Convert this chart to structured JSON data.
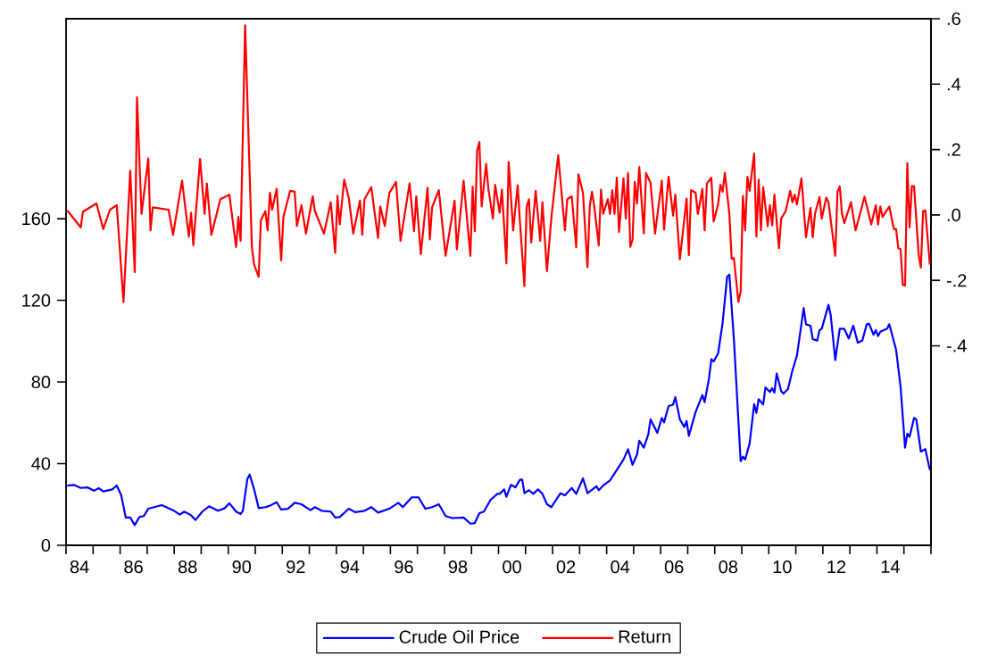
{
  "chart_data": {
    "type": "line",
    "xlim": [
      "1984",
      "2016"
    ],
    "xticks": [
      {
        "value": "1984",
        "label": null
      },
      {
        "value": "1985",
        "label": null
      },
      {
        "value": "1986",
        "label": null
      },
      {
        "value": "1987",
        "label": null
      },
      {
        "value": "1988",
        "label": null
      },
      {
        "value": "1989",
        "label": null
      },
      {
        "value": "1990",
        "label": null
      },
      {
        "value": "1991",
        "label": null
      },
      {
        "value": "1992",
        "label": null
      },
      {
        "value": "1993",
        "label": null
      },
      {
        "value": "1994",
        "label": null
      },
      {
        "value": "1995",
        "label": null
      },
      {
        "value": "1996",
        "label": null
      },
      {
        "value": "1997",
        "label": null
      },
      {
        "value": "1998",
        "label": null
      },
      {
        "value": "1999",
        "label": null
      },
      {
        "value": "2000",
        "label": null
      },
      {
        "value": "2001",
        "label": null
      },
      {
        "value": "2002",
        "label": null
      },
      {
        "value": "2003",
        "label": null
      },
      {
        "value": "2004",
        "label": null
      },
      {
        "value": "2005",
        "label": null
      },
      {
        "value": "2006",
        "label": null
      },
      {
        "value": "2007",
        "label": null
      },
      {
        "value": "2008",
        "label": null
      },
      {
        "value": "2009",
        "label": null
      },
      {
        "value": "2010",
        "label": null
      },
      {
        "value": "2011",
        "label": null
      },
      {
        "value": "2012",
        "label": null
      },
      {
        "value": "2013",
        "label": null
      },
      {
        "value": "2014",
        "label": null
      },
      {
        "value": "2015",
        "label": null
      },
      {
        "value": "2016",
        "label": null
      },
      {
        "value": "1984-07-01",
        "label": "84"
      },
      {
        "value": "1986-07-01",
        "label": "86"
      },
      {
        "value": "1988-07-01",
        "label": "88"
      },
      {
        "value": "1990-07-01",
        "label": "90"
      },
      {
        "value": "1992-07-01",
        "label": "92"
      },
      {
        "value": "1994-07-01",
        "label": "94"
      },
      {
        "value": "1996-07-01",
        "label": "96"
      },
      {
        "value": "1998-07-01",
        "label": "98"
      },
      {
        "value": "2000-07-01",
        "label": "00"
      },
      {
        "value": "2002-07-01",
        "label": "02"
      },
      {
        "value": "2004-07-01",
        "label": "04"
      },
      {
        "value": "2006-07-01",
        "label": "06"
      },
      {
        "value": "2008-07-01",
        "label": "08"
      },
      {
        "value": "2010-07-01",
        "label": "10"
      },
      {
        "value": "2012-07-01",
        "label": "12"
      },
      {
        "value": "2014-07-01",
        "label": "14"
      }
    ],
    "ylim": [
      0,
      258
    ],
    "yticks": [
      0,
      40,
      80,
      120,
      160
    ],
    "y2lim": [
      -1.01,
      0.6
    ],
    "y2ticks": [
      {
        "value": 0.6,
        "label": ".6"
      },
      {
        "value": 0.4,
        "label": ".4"
      },
      {
        "value": 0.2,
        "label": ".2"
      },
      {
        "value": 0,
        "label": ".0"
      },
      {
        "value": -0.2,
        "label": "-.2"
      },
      {
        "value": -0.4,
        "label": "-.4"
      }
    ],
    "legend": "bottom",
    "series": [
      {
        "name": "Crude Oil Price",
        "color": "#0000ff",
        "x": [
          "1984-01",
          "1984-04",
          "1984-07",
          "1984-10",
          "1985-01",
          "1985-03",
          "1985-05",
          "1985-09",
          "1985-11",
          "1986-01",
          "1986-03",
          "1986-05",
          "1986-07",
          "1986-09",
          "1986-11",
          "1987-01",
          "1987-07",
          "1987-09",
          "1987-12",
          "1988-03",
          "1988-05",
          "1988-08",
          "1988-10",
          "1989-01",
          "1989-04",
          "1989-08",
          "1989-11",
          "1990-01",
          "1990-04",
          "1990-06",
          "1990-07",
          "1990-09",
          "1990-10",
          "1990-12",
          "1991-02",
          "1991-05",
          "1991-07",
          "1991-10",
          "1991-12",
          "1992-03",
          "1992-06",
          "1992-09",
          "1993-01",
          "1993-03",
          "1993-06",
          "1993-10",
          "1993-12",
          "1994-02",
          "1994-06",
          "1994-09",
          "1995-01",
          "1995-04",
          "1995-07",
          "1995-12",
          "1996-04",
          "1996-06",
          "1996-10",
          "1997-01",
          "1997-04",
          "1997-07",
          "1997-10",
          "1998-01",
          "1998-04",
          "1998-09",
          "1998-12",
          "1999-02",
          "1999-04",
          "1999-06",
          "1999-09",
          "1999-12",
          "2000-01",
          "2000-03",
          "2000-04",
          "2000-06",
          "2000-08",
          "2000-10",
          "2000-11",
          "2000-12",
          "2001-02",
          "2001-04",
          "2001-06",
          "2001-08",
          "2001-10",
          "2001-12",
          "2002-04",
          "2002-06",
          "2002-09",
          "2002-11",
          "2003-02",
          "2003-04",
          "2003-08",
          "2003-09",
          "2003-11",
          "2004-02",
          "2004-05",
          "2004-08",
          "2004-10",
          "2004-12",
          "2005-02",
          "2005-03",
          "2005-05",
          "2005-07",
          "2005-08",
          "2005-11",
          "2006-01",
          "2006-02",
          "2006-04",
          "2006-06",
          "2006-07",
          "2006-09",
          "2006-11",
          "2006-12",
          "2007-01",
          "2007-04",
          "2007-07",
          "2007-08",
          "2007-10",
          "2007-11",
          "2007-12",
          "2008-02",
          "2008-04",
          "2008-06",
          "2008-07",
          "2008-09",
          "2008-12",
          "2009-01",
          "2009-02",
          "2009-04",
          "2009-06",
          "2009-07",
          "2009-08",
          "2009-10",
          "2009-11",
          "2010-01",
          "2010-02",
          "2010-03",
          "2010-04",
          "2010-06",
          "2010-07",
          "2010-09",
          "2010-11",
          "2011-01",
          "2011-04",
          "2011-05",
          "2011-07",
          "2011-08",
          "2011-10",
          "2011-11",
          "2011-12",
          "2012-03",
          "2012-04",
          "2012-06",
          "2012-08",
          "2012-10",
          "2012-12",
          "2013-02",
          "2013-04",
          "2013-06",
          "2013-08",
          "2013-09",
          "2013-11",
          "2013-12",
          "2014-01",
          "2014-02",
          "2014-05",
          "2014-06",
          "2014-09",
          "2014-11",
          "2015-01",
          "2015-02",
          "2015-03",
          "2015-05",
          "2015-06",
          "2015-08",
          "2015-10",
          "2015-12"
        ],
        "values": [
          29.2,
          29.6,
          28.1,
          28.4,
          26.7,
          28.0,
          26.4,
          27.4,
          29.3,
          24.5,
          13.6,
          13.6,
          9.9,
          13.8,
          14.3,
          17.9,
          19.7,
          18.7,
          17.2,
          15.0,
          16.5,
          14.7,
          12.4,
          16.5,
          19.1,
          16.9,
          18.2,
          20.6,
          16.5,
          15.3,
          16.9,
          32.5,
          34.7,
          27.4,
          18.2,
          18.7,
          19.4,
          21.1,
          17.5,
          17.9,
          20.8,
          20.1,
          17.2,
          18.7,
          16.9,
          16.5,
          13.6,
          13.8,
          17.9,
          16.2,
          16.9,
          18.7,
          16.0,
          17.9,
          20.8,
          18.7,
          23.5,
          23.5,
          17.9,
          18.7,
          20.1,
          14.3,
          13.3,
          13.6,
          10.6,
          10.9,
          15.7,
          16.5,
          22.3,
          25.2,
          25.2,
          27.4,
          23.8,
          29.6,
          28.4,
          32.1,
          32.2,
          25.5,
          27.0,
          25.2,
          27.4,
          25.2,
          20.1,
          18.7,
          25.5,
          24.5,
          28.1,
          25.2,
          32.8,
          25.5,
          28.9,
          27.0,
          29.3,
          31.8,
          36.9,
          42.0,
          47.1,
          39.4,
          44.5,
          51.2,
          47.8,
          54.4,
          61.7,
          55.1,
          62.4,
          60.2,
          68.2,
          68.9,
          72.6,
          61.7,
          58.0,
          60.9,
          53.6,
          65.3,
          73.6,
          70.1,
          82.1,
          91.2,
          90.1,
          94.0,
          109.0,
          131.6,
          132.6,
          101.0,
          41.2,
          43.4,
          42.0,
          50.0,
          69.2,
          64.9,
          71.6,
          68.9,
          77.4,
          75.1,
          77.0,
          74.8,
          84.2,
          75.5,
          74.3,
          76.5,
          85.7,
          93.0,
          116.3,
          108.3,
          107.6,
          101.0,
          100.3,
          105.4,
          106.1,
          117.8,
          112.7,
          90.8,
          106.1,
          106.1,
          101.3,
          107.6,
          99.3,
          100.3,
          108.3,
          108.6,
          103.2,
          105.4,
          102.5,
          104.6,
          106.1,
          108.3,
          95.9,
          77.7,
          47.8,
          54.7,
          53.2,
          62.4,
          61.7,
          45.9,
          47.1,
          36.9
        ]
      },
      {
        "name": "Return",
        "color": "#ff0000",
        "axis": "y2",
        "x": [
          "1984-01",
          "1984-07",
          "1984-08",
          "1985-02",
          "1985-05",
          "1985-08",
          "1985-11",
          "1986-02",
          "1986-05",
          "1986-07",
          "1986-08",
          "1986-10",
          "1987-01",
          "1987-02",
          "1987-03",
          "1987-10",
          "1987-12",
          "1988-04",
          "1988-07",
          "1988-08",
          "1988-09",
          "1988-12",
          "1989-02",
          "1989-03",
          "1989-05",
          "1989-09",
          "1990-01",
          "1990-04",
          "1990-05",
          "1990-06",
          "1990-08",
          "1990-11",
          "1990-12",
          "1991-02",
          "1991-03",
          "1991-05",
          "1991-06",
          "1991-07",
          "1991-08",
          "1991-10",
          "1991-12",
          "1992-01",
          "1992-04",
          "1992-06",
          "1992-07",
          "1992-09",
          "1992-11",
          "1993-02",
          "1993-03",
          "1993-07",
          "1993-10",
          "1993-12",
          "1994-01",
          "1994-02",
          "1994-04",
          "1994-06",
          "1994-08",
          "1994-11",
          "1994-12",
          "1995-01",
          "1995-04",
          "1995-07",
          "1995-08",
          "1995-10",
          "1995-12",
          "1996-03",
          "1996-05",
          "1996-09",
          "1996-11",
          "1996-12",
          "1997-02",
          "1997-05",
          "1997-06",
          "1997-07",
          "1997-10",
          "1998-01",
          "1998-05",
          "1998-06",
          "1998-09",
          "1998-12",
          "1999-01",
          "1999-02",
          "1999-03",
          "1999-04",
          "1999-05",
          "1999-07",
          "1999-08",
          "1999-10",
          "1999-11",
          "2000-01",
          "2000-02",
          "2000-04",
          "2000-05",
          "2000-07",
          "2000-09",
          "2000-10",
          "2000-12",
          "2001-01",
          "2001-02",
          "2001-03",
          "2001-05",
          "2001-07",
          "2001-08",
          "2001-10",
          "2001-12",
          "2002-03",
          "2002-06",
          "2002-07",
          "2002-09",
          "2002-11",
          "2002-12",
          "2003-02",
          "2003-04",
          "2003-05",
          "2003-06",
          "2003-07",
          "2003-09",
          "2003-10",
          "2003-11",
          "2004-01",
          "2004-02",
          "2004-03",
          "2004-04",
          "2004-05",
          "2004-06",
          "2004-08",
          "2004-09",
          "2004-10",
          "2004-11",
          "2004-12",
          "2005-01",
          "2005-02",
          "2005-03",
          "2005-05",
          "2005-06",
          "2005-08",
          "2005-10",
          "2006-01",
          "2006-02",
          "2006-04",
          "2006-06",
          "2006-07",
          "2006-09",
          "2006-12",
          "2007-01",
          "2007-02",
          "2007-04",
          "2007-05",
          "2007-07",
          "2007-08",
          "2007-09",
          "2007-11",
          "2007-12",
          "2008-02",
          "2008-03",
          "2008-04",
          "2008-05",
          "2008-07",
          "2008-08",
          "2008-09",
          "2008-11",
          "2008-12",
          "2009-01",
          "2009-02",
          "2009-03",
          "2009-04",
          "2009-06",
          "2009-07",
          "2009-08",
          "2009-09",
          "2009-10",
          "2009-12",
          "2010-01",
          "2010-02",
          "2010-03",
          "2010-05",
          "2010-06",
          "2010-08",
          "2010-10",
          "2010-11",
          "2010-12",
          "2011-01",
          "2011-03",
          "2011-05",
          "2011-07",
          "2011-08",
          "2011-09",
          "2011-11",
          "2011-12",
          "2012-02",
          "2012-03",
          "2012-06",
          "2012-07",
          "2012-08",
          "2012-09",
          "2012-10",
          "2013-01",
          "2013-03",
          "2013-05",
          "2013-07",
          "2013-10",
          "2013-12",
          "2014-01",
          "2014-02",
          "2014-03",
          "2014-06",
          "2014-08",
          "2014-09",
          "2014-10",
          "2014-11",
          "2014-12",
          "2015-01",
          "2015-02",
          "2015-03",
          "2015-04",
          "2015-05",
          "2015-07",
          "2015-08",
          "2015-09",
          "2015-10",
          "2015-12"
        ],
        "values": [
          0.014,
          -0.038,
          0.01,
          0.035,
          -0.043,
          0.016,
          0.03,
          -0.266,
          0.135,
          -0.175,
          0.36,
          0.003,
          0.173,
          -0.047,
          0.023,
          0.016,
          -0.061,
          0.105,
          -0.066,
          0.007,
          -0.093,
          0.171,
          0.003,
          0.096,
          -0.061,
          0.048,
          0.062,
          -0.098,
          -0.006,
          -0.079,
          0.58,
          -0.098,
          -0.152,
          -0.189,
          -0.016,
          0.012,
          -0.047,
          0.068,
          0.016,
          0.08,
          -0.139,
          -0.006,
          0.074,
          0.071,
          -0.034,
          0.03,
          -0.057,
          0.057,
          0.012,
          -0.057,
          0.039,
          -0.116,
          0.059,
          -0.029,
          0.108,
          0.053,
          -0.057,
          0.044,
          -0.061,
          0.048,
          0.085,
          -0.07,
          0.026,
          -0.034,
          0.067,
          0.101,
          -0.079,
          0.096,
          -0.05,
          0.057,
          -0.12,
          0.083,
          -0.075,
          0.023,
          0.076,
          -0.125,
          0.044,
          -0.105,
          0.105,
          -0.125,
          0.087,
          -0.05,
          0.196,
          0.223,
          0.026,
          0.156,
          0.08,
          -0.011,
          0.092,
          0.007,
          0.078,
          -0.148,
          0.162,
          -0.047,
          0.091,
          -0.02,
          -0.218,
          0.026,
          0.048,
          -0.084,
          0.074,
          -0.079,
          0.039,
          -0.172,
          -0.006,
          0.183,
          -0.047,
          0.048,
          0.057,
          -0.099,
          0.124,
          0.067,
          -0.16,
          0.026,
          0.071,
          0.026,
          -0.093,
          0.078,
          0.003,
          0.048,
          0.003,
          0.076,
          0.003,
          0.114,
          -0.052,
          0.112,
          -0.011,
          0.128,
          -0.098,
          -0.075,
          0.101,
          0.035,
          0.147,
          -0.057,
          0.128,
          0.098,
          -0.057,
          0.105,
          -0.045,
          0.117,
          -0.002,
          0.062,
          -0.136,
          0.05,
          -0.123,
          0.076,
          0.068,
          0.003,
          0.08,
          -0.047,
          0.096,
          0.114,
          -0.02,
          0.032,
          0.092,
          0.071,
          0.129,
          0.003,
          -0.134,
          -0.132,
          -0.266,
          -0.234,
          0.059,
          -0.047,
          0.117,
          0.074,
          0.188,
          -0.066,
          0.108,
          -0.047,
          0.085,
          -0.034,
          0.03,
          -0.032,
          0.062,
          -0.102,
          -0.011,
          0.012,
          0.074,
          0.039,
          0.062,
          0.032,
          0.112,
          -0.068,
          0.021,
          -0.068,
          0.003,
          0.055,
          -0.011,
          0.053,
          0.039,
          -0.125,
          0.071,
          0.087,
          0.003,
          -0.025,
          0.039,
          -0.047,
          0.003,
          0.056,
          -0.029,
          0.03,
          -0.029,
          0.026,
          -0.006,
          0.026,
          -0.043,
          -0.043,
          -0.102,
          -0.105,
          -0.214,
          -0.216,
          0.158,
          -0.038,
          0.088,
          0.088,
          -0.12,
          -0.161,
          0.012,
          0.014,
          -0.152
        ]
      }
    ]
  }
}
